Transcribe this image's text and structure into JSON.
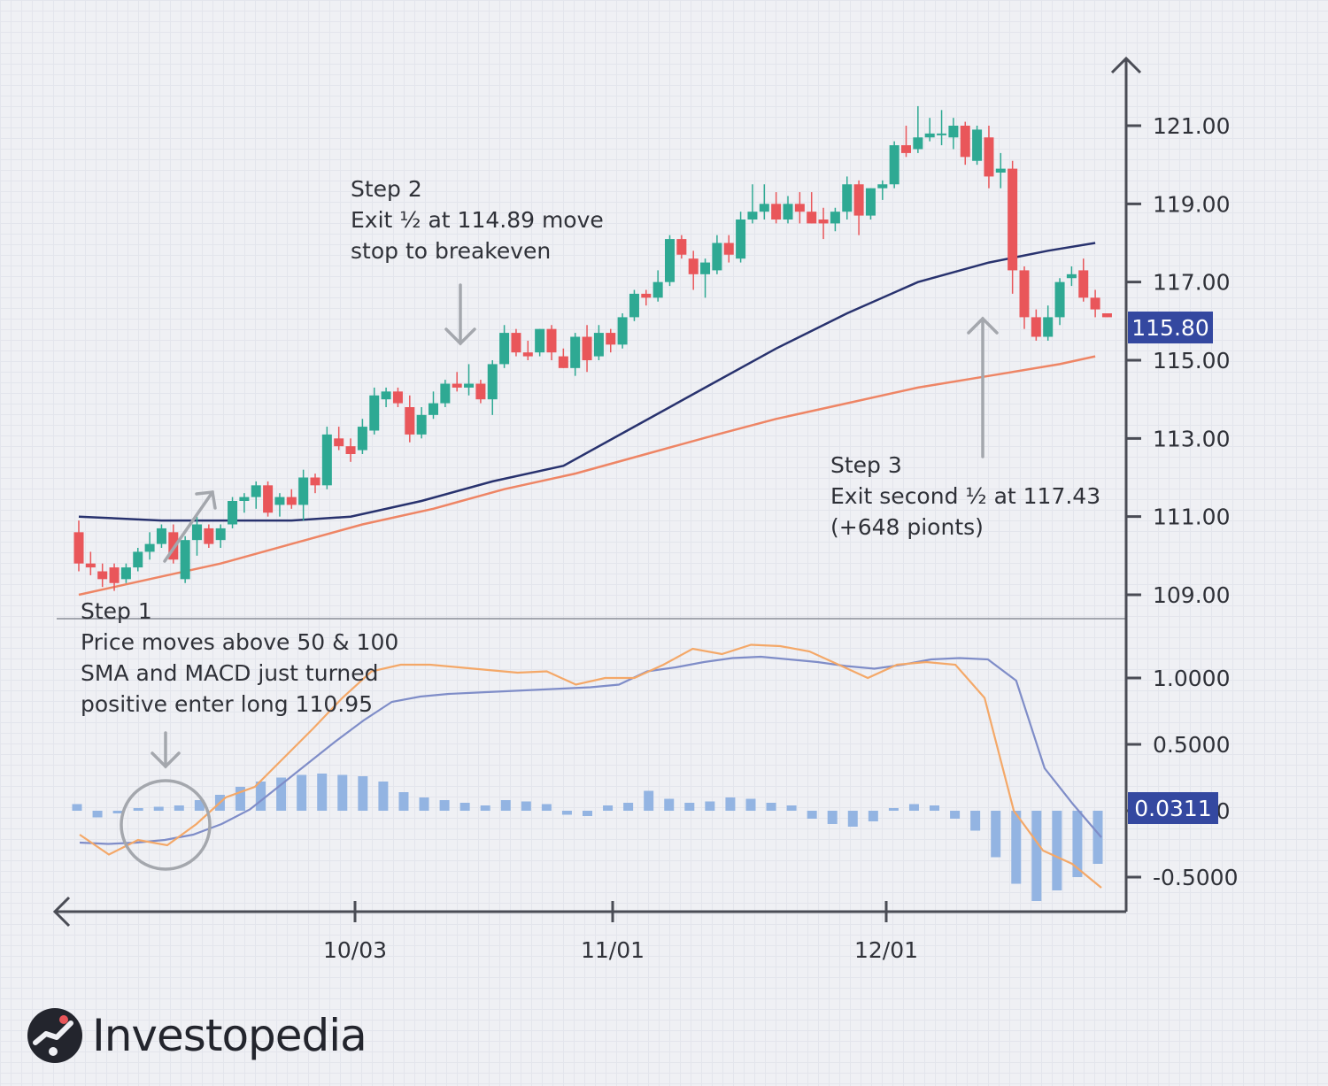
{
  "brand": {
    "name": "Investopedia"
  },
  "annotations": {
    "step1": [
      "Step 1",
      "Price moves above 50 & 100",
      "SMA and MACD just turned",
      "positive enter long 110.95"
    ],
    "step2": [
      "Step 2",
      "Exit ½ at 114.89 move",
      "stop to breakeven"
    ],
    "step3": [
      "Step 3",
      "Exit second ½ at 117.43",
      "(+648 pionts)"
    ]
  },
  "colors": {
    "up": "#2ea993",
    "down": "#e9565a",
    "sma50": "#28326e",
    "sma100": "#ee8565",
    "macd": "#7f8dc8",
    "signal": "#f4a868",
    "histogram": "#93b4e2",
    "axis": "#4a4c55",
    "badge": "#3448a0",
    "arrow": "#a4a7ad"
  },
  "chart_data": {
    "type": "candlestick",
    "price_panel": {
      "y_ticks": [
        "121.00",
        "119.00",
        "117.00",
        "115.00",
        "113.00",
        "111.00",
        "109.00"
      ],
      "ylim": [
        108.4,
        122.5
      ],
      "current_label": "115.80",
      "current_value": 115.8,
      "candles": [
        {
          "o": 110.6,
          "h": 110.9,
          "l": 109.6,
          "c": 109.8
        },
        {
          "o": 109.8,
          "h": 110.1,
          "l": 109.5,
          "c": 109.7
        },
        {
          "o": 109.6,
          "h": 109.8,
          "l": 109.2,
          "c": 109.4
        },
        {
          "o": 109.7,
          "h": 109.8,
          "l": 109.1,
          "c": 109.3
        },
        {
          "o": 109.4,
          "h": 109.8,
          "l": 109.3,
          "c": 109.7
        },
        {
          "o": 109.7,
          "h": 110.2,
          "l": 109.6,
          "c": 110.1
        },
        {
          "o": 110.1,
          "h": 110.6,
          "l": 109.9,
          "c": 110.3
        },
        {
          "o": 110.3,
          "h": 110.8,
          "l": 110.2,
          "c": 110.7
        },
        {
          "o": 110.6,
          "h": 110.8,
          "l": 109.8,
          "c": 109.9
        },
        {
          "o": 109.4,
          "h": 110.5,
          "l": 109.3,
          "c": 110.4
        },
        {
          "o": 110.4,
          "h": 111.0,
          "l": 110.0,
          "c": 110.8
        },
        {
          "o": 110.7,
          "h": 110.8,
          "l": 110.2,
          "c": 110.3
        },
        {
          "o": 110.4,
          "h": 110.8,
          "l": 110.2,
          "c": 110.7
        },
        {
          "o": 110.8,
          "h": 111.5,
          "l": 110.7,
          "c": 111.4
        },
        {
          "o": 111.4,
          "h": 111.6,
          "l": 111.1,
          "c": 111.5
        },
        {
          "o": 111.5,
          "h": 111.9,
          "l": 111.2,
          "c": 111.8
        },
        {
          "o": 111.8,
          "h": 111.9,
          "l": 111.0,
          "c": 111.1
        },
        {
          "o": 111.3,
          "h": 111.6,
          "l": 111.0,
          "c": 111.5
        },
        {
          "o": 111.5,
          "h": 111.7,
          "l": 111.2,
          "c": 111.3
        },
        {
          "o": 111.3,
          "h": 112.2,
          "l": 110.9,
          "c": 112.0
        },
        {
          "o": 112.0,
          "h": 112.1,
          "l": 111.6,
          "c": 111.8
        },
        {
          "o": 111.8,
          "h": 113.3,
          "l": 111.7,
          "c": 113.1
        },
        {
          "o": 113.0,
          "h": 113.3,
          "l": 112.7,
          "c": 112.8
        },
        {
          "o": 112.8,
          "h": 113.0,
          "l": 112.4,
          "c": 112.6
        },
        {
          "o": 112.7,
          "h": 113.5,
          "l": 112.6,
          "c": 113.3
        },
        {
          "o": 113.2,
          "h": 114.3,
          "l": 113.1,
          "c": 114.1
        },
        {
          "o": 114.0,
          "h": 114.3,
          "l": 113.8,
          "c": 114.2
        },
        {
          "o": 114.2,
          "h": 114.3,
          "l": 113.8,
          "c": 113.9
        },
        {
          "o": 113.8,
          "h": 114.1,
          "l": 112.9,
          "c": 113.1
        },
        {
          "o": 113.1,
          "h": 113.8,
          "l": 113.0,
          "c": 113.6
        },
        {
          "o": 113.6,
          "h": 114.2,
          "l": 113.5,
          "c": 113.9
        },
        {
          "o": 113.9,
          "h": 114.5,
          "l": 113.8,
          "c": 114.4
        },
        {
          "o": 114.4,
          "h": 114.7,
          "l": 114.2,
          "c": 114.3
        },
        {
          "o": 114.3,
          "h": 114.9,
          "l": 114.1,
          "c": 114.4
        },
        {
          "o": 114.4,
          "h": 114.5,
          "l": 113.9,
          "c": 114.0
        },
        {
          "o": 114.0,
          "h": 115.0,
          "l": 113.6,
          "c": 114.9
        },
        {
          "o": 114.9,
          "h": 115.9,
          "l": 114.8,
          "c": 115.7
        },
        {
          "o": 115.7,
          "h": 115.8,
          "l": 115.1,
          "c": 115.2
        },
        {
          "o": 115.2,
          "h": 115.5,
          "l": 115.0,
          "c": 115.1
        },
        {
          "o": 115.2,
          "h": 115.8,
          "l": 115.1,
          "c": 115.8
        },
        {
          "o": 115.8,
          "h": 115.9,
          "l": 115.0,
          "c": 115.2
        },
        {
          "o": 115.1,
          "h": 115.3,
          "l": 114.8,
          "c": 114.8
        },
        {
          "o": 114.8,
          "h": 115.7,
          "l": 114.6,
          "c": 115.6
        },
        {
          "o": 115.6,
          "h": 115.9,
          "l": 114.7,
          "c": 115.0
        },
        {
          "o": 115.1,
          "h": 115.9,
          "l": 115.0,
          "c": 115.7
        },
        {
          "o": 115.7,
          "h": 115.8,
          "l": 115.2,
          "c": 115.4
        },
        {
          "o": 115.4,
          "h": 116.2,
          "l": 115.3,
          "c": 116.1
        },
        {
          "o": 116.1,
          "h": 116.8,
          "l": 116.0,
          "c": 116.7
        },
        {
          "o": 116.7,
          "h": 116.8,
          "l": 116.4,
          "c": 116.6
        },
        {
          "o": 116.6,
          "h": 117.3,
          "l": 116.5,
          "c": 117.0
        },
        {
          "o": 117.0,
          "h": 118.2,
          "l": 116.9,
          "c": 118.1
        },
        {
          "o": 118.1,
          "h": 118.2,
          "l": 117.6,
          "c": 117.7
        },
        {
          "o": 117.6,
          "h": 117.8,
          "l": 116.8,
          "c": 117.2
        },
        {
          "o": 117.2,
          "h": 117.6,
          "l": 116.6,
          "c": 117.5
        },
        {
          "o": 117.3,
          "h": 118.2,
          "l": 117.2,
          "c": 118.0
        },
        {
          "o": 118.0,
          "h": 118.2,
          "l": 117.5,
          "c": 117.7
        },
        {
          "o": 117.6,
          "h": 118.8,
          "l": 117.5,
          "c": 118.6
        },
        {
          "o": 118.6,
          "h": 119.5,
          "l": 118.5,
          "c": 118.8
        },
        {
          "o": 118.8,
          "h": 119.5,
          "l": 118.6,
          "c": 119.0
        },
        {
          "o": 119.0,
          "h": 119.3,
          "l": 118.5,
          "c": 118.6
        },
        {
          "o": 118.6,
          "h": 119.2,
          "l": 118.5,
          "c": 119.0
        },
        {
          "o": 119.0,
          "h": 119.3,
          "l": 118.5,
          "c": 118.8
        },
        {
          "o": 118.8,
          "h": 119.3,
          "l": 118.5,
          "c": 118.5
        },
        {
          "o": 118.6,
          "h": 118.9,
          "l": 118.1,
          "c": 118.5
        },
        {
          "o": 118.5,
          "h": 118.9,
          "l": 118.3,
          "c": 118.8
        },
        {
          "o": 118.8,
          "h": 119.7,
          "l": 118.6,
          "c": 119.5
        },
        {
          "o": 119.5,
          "h": 119.6,
          "l": 118.2,
          "c": 118.7
        },
        {
          "o": 118.7,
          "h": 119.4,
          "l": 118.6,
          "c": 119.4
        },
        {
          "o": 119.4,
          "h": 119.6,
          "l": 119.1,
          "c": 119.5
        },
        {
          "o": 119.5,
          "h": 120.6,
          "l": 119.4,
          "c": 120.5
        },
        {
          "o": 120.5,
          "h": 121.0,
          "l": 120.2,
          "c": 120.3
        },
        {
          "o": 120.4,
          "h": 121.5,
          "l": 120.3,
          "c": 120.7
        },
        {
          "o": 120.7,
          "h": 121.2,
          "l": 120.6,
          "c": 120.8
        },
        {
          "o": 120.8,
          "h": 121.4,
          "l": 120.5,
          "c": 120.8
        },
        {
          "o": 120.7,
          "h": 121.2,
          "l": 120.4,
          "c": 121.0
        },
        {
          "o": 121.0,
          "h": 121.1,
          "l": 120.0,
          "c": 120.2
        },
        {
          "o": 120.1,
          "h": 121.0,
          "l": 120.0,
          "c": 120.9
        },
        {
          "o": 120.7,
          "h": 121.0,
          "l": 119.4,
          "c": 119.7
        },
        {
          "o": 119.8,
          "h": 120.3,
          "l": 119.4,
          "c": 119.9
        },
        {
          "o": 119.9,
          "h": 120.1,
          "l": 116.7,
          "c": 117.3
        },
        {
          "o": 117.3,
          "h": 117.4,
          "l": 115.8,
          "c": 116.1
        },
        {
          "o": 116.1,
          "h": 116.3,
          "l": 115.5,
          "c": 115.6
        },
        {
          "o": 115.6,
          "h": 116.4,
          "l": 115.5,
          "c": 116.1
        },
        {
          "o": 116.1,
          "h": 117.1,
          "l": 115.9,
          "c": 117.0
        },
        {
          "o": 117.1,
          "h": 117.4,
          "l": 116.9,
          "c": 117.2
        },
        {
          "o": 117.3,
          "h": 117.6,
          "l": 116.5,
          "c": 116.6
        },
        {
          "o": 116.6,
          "h": 116.8,
          "l": 116.1,
          "c": 116.3
        },
        {
          "o": 116.2,
          "h": 116.2,
          "l": 116.1,
          "c": 116.1
        }
      ],
      "sma50": [
        [
          0,
          111.0
        ],
        [
          7,
          110.9
        ],
        [
          13,
          110.9
        ],
        [
          18,
          110.9
        ],
        [
          23,
          111.0
        ],
        [
          29,
          111.4
        ],
        [
          35,
          111.9
        ],
        [
          41,
          112.3
        ],
        [
          47,
          113.3
        ],
        [
          53,
          114.3
        ],
        [
          59,
          115.3
        ],
        [
          65,
          116.2
        ],
        [
          71,
          117.0
        ],
        [
          77,
          117.5
        ],
        [
          82,
          117.8
        ],
        [
          86,
          118.0
        ]
      ],
      "sma100": [
        [
          0,
          109.0
        ],
        [
          6,
          109.4
        ],
        [
          12,
          109.8
        ],
        [
          18,
          110.3
        ],
        [
          24,
          110.8
        ],
        [
          30,
          111.2
        ],
        [
          36,
          111.7
        ],
        [
          42,
          112.1
        ],
        [
          48,
          112.6
        ],
        [
          54,
          113.1
        ],
        [
          59,
          113.5
        ],
        [
          65,
          113.9
        ],
        [
          71,
          114.3
        ],
        [
          77,
          114.6
        ],
        [
          83,
          114.9
        ],
        [
          86,
          115.1
        ]
      ]
    },
    "macd_panel": {
      "y_ticks": [
        "1.0000",
        "0.5000",
        "0.0000",
        "-0.5000"
      ],
      "ylim": [
        -0.75,
        1.35
      ],
      "current_label": "0.0311",
      "current_value": 0.0311,
      "macd": [
        -0.24,
        -0.25,
        -0.24,
        -0.22,
        -0.18,
        -0.1,
        0.01,
        0.18,
        0.35,
        0.52,
        0.68,
        0.82,
        0.86,
        0.88,
        0.89,
        0.9,
        0.91,
        0.92,
        0.93,
        0.95,
        1.05,
        1.08,
        1.12,
        1.15,
        1.16,
        1.14,
        1.12,
        1.09,
        1.07,
        1.1,
        1.14,
        1.15,
        1.14,
        0.98,
        0.32,
        0.05,
        -0.2
      ],
      "signal": [
        -0.18,
        -0.33,
        -0.22,
        -0.26,
        -0.1,
        0.1,
        0.18,
        0.4,
        0.62,
        0.85,
        1.05,
        1.1,
        1.1,
        1.08,
        1.06,
        1.04,
        1.05,
        0.95,
        1.0,
        1.0,
        1.1,
        1.22,
        1.18,
        1.25,
        1.24,
        1.2,
        1.1,
        1.0,
        1.1,
        1.12,
        1.1,
        0.85,
        0.0,
        -0.3,
        -0.4,
        -0.58
      ],
      "histogram": [
        0.05,
        -0.05,
        -0.02,
        0.02,
        0.03,
        0.04,
        0.08,
        0.12,
        0.18,
        0.22,
        0.25,
        0.27,
        0.28,
        0.27,
        0.26,
        0.22,
        0.14,
        0.1,
        0.08,
        0.06,
        0.04,
        0.08,
        0.07,
        0.05,
        -0.03,
        -0.04,
        0.04,
        0.06,
        0.15,
        0.09,
        0.06,
        0.07,
        0.1,
        0.09,
        0.06,
        0.04,
        -0.06,
        -0.1,
        -0.12,
        -0.08,
        0.02,
        0.05,
        0.04,
        -0.06,
        -0.15,
        -0.35,
        -0.55,
        -0.68,
        -0.6,
        -0.5,
        -0.4
      ],
      "histogram_label_hidden_under_badge": true
    },
    "x_ticks": [
      "10/03",
      "11/01",
      "12/01"
    ]
  }
}
